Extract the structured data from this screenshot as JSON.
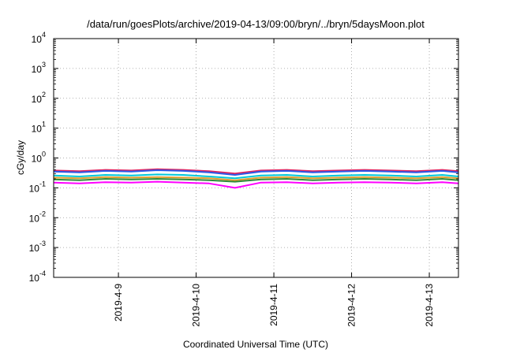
{
  "chart_data": {
    "type": "line",
    "title": "/data/run/goesPlots/archive/2019-04-13/09:00/bryn/../bryn/5daysMoon.plot",
    "xlabel": "Coordinated Universal Time (UTC)",
    "ylabel": "cGy/day",
    "y_scale": "log",
    "ylim": [
      0.0001,
      10000
    ],
    "y_ticks": [
      {
        "base": "10",
        "exp": "-4",
        "value": 0.0001
      },
      {
        "base": "10",
        "exp": "-3",
        "value": 0.001
      },
      {
        "base": "10",
        "exp": "-2",
        "value": 0.01
      },
      {
        "base": "10",
        "exp": "-1",
        "value": 0.1
      },
      {
        "base": "10",
        "exp": "0",
        "value": 1
      },
      {
        "base": "10",
        "exp": "1",
        "value": 10
      },
      {
        "base": "10",
        "exp": "2",
        "value": 100
      },
      {
        "base": "10",
        "exp": "3",
        "value": 1000
      },
      {
        "base": "10",
        "exp": "4",
        "value": 10000
      }
    ],
    "xlim": [
      "2019-04-08 04:00",
      "2019-04-13 09:00"
    ],
    "x_ticks": [
      "2019-4-9",
      "2019-4-10",
      "2019-4-11",
      "2019-4-12",
      "2019-4-13"
    ],
    "grid": true,
    "x": [
      "2019-04-08 04:00",
      "2019-04-08 12:00",
      "2019-04-08 20:00",
      "2019-04-09 04:00",
      "2019-04-09 12:00",
      "2019-04-09 20:00",
      "2019-04-10 04:00",
      "2019-04-10 12:00",
      "2019-04-10 20:00",
      "2019-04-11 04:00",
      "2019-04-11 12:00",
      "2019-04-11 20:00",
      "2019-04-12 04:00",
      "2019-04-12 12:00",
      "2019-04-12 20:00",
      "2019-04-13 04:00",
      "2019-04-13 09:00"
    ],
    "series": [
      {
        "color": "#e0245e",
        "values": [
          0.38,
          0.36,
          0.4,
          0.38,
          0.42,
          0.4,
          0.36,
          0.3,
          0.38,
          0.4,
          0.36,
          0.38,
          0.4,
          0.38,
          0.36,
          0.4,
          0.36
        ]
      },
      {
        "color": "#2b59e8",
        "values": [
          0.35,
          0.33,
          0.37,
          0.35,
          0.39,
          0.37,
          0.33,
          0.27,
          0.35,
          0.37,
          0.33,
          0.35,
          0.37,
          0.35,
          0.33,
          0.37,
          0.33
        ]
      },
      {
        "color": "#00c8d8",
        "values": [
          0.26,
          0.24,
          0.27,
          0.26,
          0.28,
          0.27,
          0.24,
          0.21,
          0.26,
          0.27,
          0.24,
          0.26,
          0.27,
          0.26,
          0.24,
          0.27,
          0.24
        ]
      },
      {
        "color": "#e0a030",
        "values": [
          0.22,
          0.21,
          0.23,
          0.22,
          0.23,
          0.22,
          0.21,
          0.18,
          0.22,
          0.23,
          0.21,
          0.22,
          0.23,
          0.22,
          0.21,
          0.23,
          0.21
        ]
      },
      {
        "color": "#2e8b3a",
        "values": [
          0.19,
          0.18,
          0.2,
          0.19,
          0.2,
          0.19,
          0.18,
          0.16,
          0.19,
          0.2,
          0.18,
          0.19,
          0.2,
          0.19,
          0.18,
          0.2,
          0.18
        ]
      },
      {
        "color": "#ff00ff",
        "values": [
          0.15,
          0.14,
          0.155,
          0.15,
          0.16,
          0.15,
          0.14,
          0.1,
          0.15,
          0.155,
          0.14,
          0.15,
          0.155,
          0.15,
          0.14,
          0.155,
          0.14
        ]
      }
    ]
  }
}
